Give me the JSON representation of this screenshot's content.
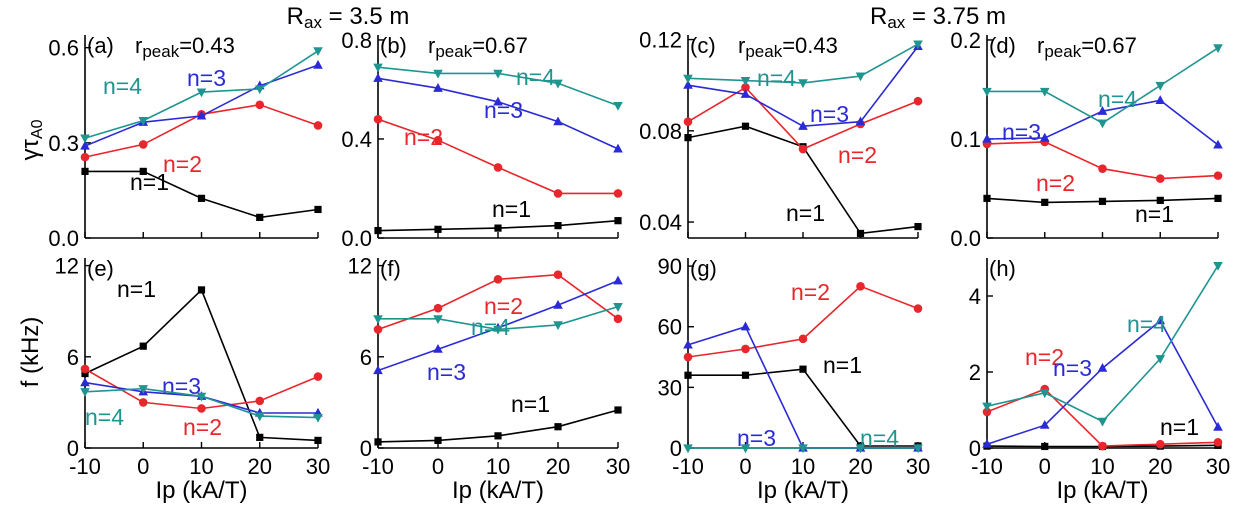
{
  "colors": {
    "n1": "#000000",
    "n2": "#e8262b",
    "n3": "#2b2bd6",
    "n4": "#1f9590"
  },
  "group_titles": [
    {
      "main": "R",
      "sub": "ax",
      "rest": " = 3.5 m"
    },
    {
      "main": "R",
      "sub": "ax",
      "rest": " = 3.75 m"
    }
  ],
  "ylabels": {
    "top": "γτ",
    "top_sub": "A0",
    "bottom": "f (kHz)"
  },
  "xlabel": "Ip (kA/T)",
  "chart_data": [
    {
      "id": "a",
      "label": "(a)",
      "rpeak_prefix": "r",
      "rpeak_sub": "peak",
      "rpeak_value": "=0.43",
      "type": "line",
      "x": [
        -10,
        0,
        10,
        20,
        30
      ],
      "xlim": [
        -10,
        30
      ],
      "xticks": [
        "-10",
        "0",
        "10",
        "20",
        "30"
      ],
      "ylim": [
        0,
        0.64
      ],
      "yticks": [
        0,
        0.3,
        0.6
      ],
      "ytick_labels": [
        "0.0",
        "0.3",
        "0.6"
      ],
      "series": [
        {
          "name": "n=1",
          "color": "n1",
          "marker": "square",
          "values": [
            0.21,
            0.21,
            0.125,
            0.065,
            0.09
          ]
        },
        {
          "name": "n=2",
          "color": "n2",
          "marker": "circle",
          "values": [
            0.255,
            0.295,
            0.39,
            0.42,
            0.355
          ]
        },
        {
          "name": "n=3",
          "color": "n3",
          "marker": "triangle-up",
          "values": [
            0.29,
            0.365,
            0.385,
            0.48,
            0.545
          ]
        },
        {
          "name": "n=4",
          "color": "n4",
          "marker": "triangle-down",
          "values": [
            0.315,
            0.37,
            0.46,
            0.47,
            0.59
          ]
        }
      ]
    },
    {
      "id": "b",
      "label": "(b)",
      "rpeak_prefix": "r",
      "rpeak_sub": "peak",
      "rpeak_value": "=0.67",
      "type": "line",
      "x": [
        -10,
        0,
        10,
        20,
        30
      ],
      "xlim": [
        -10,
        30
      ],
      "xticks": [
        "-10",
        "0",
        "10",
        "20",
        "30"
      ],
      "ylim": [
        0,
        0.82
      ],
      "yticks": [
        0,
        0.4,
        0.8
      ],
      "ytick_labels": [
        "0.0",
        "0.4",
        "0.8"
      ],
      "series": [
        {
          "name": "n=1",
          "color": "n1",
          "marker": "square",
          "values": [
            0.03,
            0.035,
            0.04,
            0.05,
            0.07
          ]
        },
        {
          "name": "n=2",
          "color": "n2",
          "marker": "circle",
          "values": [
            0.48,
            0.395,
            0.285,
            0.18,
            0.18
          ]
        },
        {
          "name": "n=3",
          "color": "n3",
          "marker": "triangle-up",
          "values": [
            0.645,
            0.605,
            0.55,
            0.47,
            0.36
          ]
        },
        {
          "name": "n=4",
          "color": "n4",
          "marker": "triangle-down",
          "values": [
            0.69,
            0.665,
            0.665,
            0.625,
            0.535
          ]
        }
      ]
    },
    {
      "id": "c",
      "label": "(c)",
      "rpeak_prefix": "r",
      "rpeak_sub": "peak",
      "rpeak_value": "=0.43",
      "type": "line",
      "x": [
        -10,
        0,
        10,
        20,
        30
      ],
      "xlim": [
        -10,
        30
      ],
      "xticks": [
        "-10",
        "0",
        "10",
        "20",
        "30"
      ],
      "ylim": [
        0.033,
        0.122
      ],
      "yticks": [
        0.04,
        0.08,
        0.12
      ],
      "ytick_labels": [
        "0.04",
        "0.08",
        "0.12"
      ],
      "series": [
        {
          "name": "n=1",
          "color": "n1",
          "marker": "square",
          "values": [
            0.077,
            0.082,
            0.073,
            0.035,
            0.038
          ]
        },
        {
          "name": "n=2",
          "color": "n2",
          "marker": "circle",
          "values": [
            0.084,
            0.099,
            0.072,
            0.083,
            0.093
          ]
        },
        {
          "name": "n=3",
          "color": "n3",
          "marker": "triangle-up",
          "values": [
            0.1,
            0.096,
            0.082,
            0.084,
            0.117
          ]
        },
        {
          "name": "n=4",
          "color": "n4",
          "marker": "triangle-down",
          "values": [
            0.103,
            0.102,
            0.101,
            0.104,
            0.118
          ]
        }
      ]
    },
    {
      "id": "d",
      "label": "(d)",
      "rpeak_prefix": "r",
      "rpeak_sub": "peak",
      "rpeak_value": "=0.67",
      "type": "line",
      "x": [
        -10,
        0,
        10,
        20,
        30
      ],
      "xlim": [
        -10,
        30
      ],
      "xticks": [
        "-10",
        "0",
        "10",
        "20",
        "30"
      ],
      "ylim": [
        0,
        0.205
      ],
      "yticks": [
        0,
        0.1,
        0.2
      ],
      "ytick_labels": [
        "0.0",
        "0.1",
        "0.2"
      ],
      "series": [
        {
          "name": "n=1",
          "color": "n1",
          "marker": "square",
          "values": [
            0.04,
            0.036,
            0.037,
            0.038,
            0.04
          ]
        },
        {
          "name": "n=2",
          "color": "n2",
          "marker": "circle",
          "values": [
            0.095,
            0.097,
            0.07,
            0.06,
            0.063
          ]
        },
        {
          "name": "n=3",
          "color": "n3",
          "marker": "triangle-up",
          "values": [
            0.1,
            0.101,
            0.128,
            0.139,
            0.094
          ]
        },
        {
          "name": "n=4",
          "color": "n4",
          "marker": "triangle-down",
          "values": [
            0.148,
            0.148,
            0.116,
            0.154,
            0.192
          ]
        }
      ]
    },
    {
      "id": "e",
      "label": "(e)",
      "type": "line",
      "x": [
        -10,
        0,
        10,
        20,
        30
      ],
      "xlim": [
        -10,
        30
      ],
      "xticks": [
        "-10",
        "0",
        "10",
        "20",
        "30"
      ],
      "ylim": [
        0,
        12.5
      ],
      "yticks": [
        0,
        6,
        12
      ],
      "ytick_labels": [
        "0",
        "6",
        "12"
      ],
      "series": [
        {
          "name": "n=1",
          "color": "n1",
          "marker": "square",
          "values": [
            4.9,
            6.7,
            10.4,
            0.7,
            0.5
          ]
        },
        {
          "name": "n=2",
          "color": "n2",
          "marker": "circle",
          "values": [
            5.2,
            3.0,
            2.6,
            3.1,
            4.7
          ]
        },
        {
          "name": "n=3",
          "color": "n3",
          "marker": "triangle-up",
          "values": [
            4.3,
            3.7,
            3.4,
            2.3,
            2.3
          ]
        },
        {
          "name": "n=4",
          "color": "n4",
          "marker": "triangle-down",
          "values": [
            3.7,
            3.9,
            3.4,
            2.1,
            2.0
          ]
        }
      ]
    },
    {
      "id": "f",
      "label": "(f)",
      "type": "line",
      "x": [
        -10,
        0,
        10,
        20,
        30
      ],
      "xlim": [
        -10,
        30
      ],
      "xticks": [
        "-10",
        "0",
        "10",
        "20",
        "30"
      ],
      "ylim": [
        0,
        12.5
      ],
      "yticks": [
        0,
        6,
        12
      ],
      "ytick_labels": [
        "0",
        "6",
        "12"
      ],
      "series": [
        {
          "name": "n=1",
          "color": "n1",
          "marker": "square",
          "values": [
            0.4,
            0.5,
            0.8,
            1.4,
            2.5
          ]
        },
        {
          "name": "n=2",
          "color": "n2",
          "marker": "circle",
          "values": [
            7.8,
            9.2,
            11.1,
            11.4,
            8.5
          ]
        },
        {
          "name": "n=3",
          "color": "n3",
          "marker": "triangle-up",
          "values": [
            5.1,
            6.5,
            7.9,
            9.4,
            11.0
          ]
        },
        {
          "name": "n=4",
          "color": "n4",
          "marker": "triangle-down",
          "values": [
            8.5,
            8.5,
            7.8,
            8.1,
            9.3
          ]
        }
      ]
    },
    {
      "id": "g",
      "label": "(g)",
      "type": "line",
      "x": [
        -10,
        0,
        10,
        20,
        30
      ],
      "xlim": [
        -10,
        30
      ],
      "xticks": [
        "-10",
        "0",
        "10",
        "20",
        "30"
      ],
      "ylim": [
        0,
        94
      ],
      "yticks": [
        0,
        30,
        60,
        90
      ],
      "ytick_labels": [
        "0",
        "30",
        "60",
        "90"
      ],
      "series": [
        {
          "name": "n=1",
          "color": "n1",
          "marker": "square",
          "values": [
            36,
            36,
            39,
            1,
            1
          ]
        },
        {
          "name": "n=2",
          "color": "n2",
          "marker": "circle",
          "values": [
            45,
            49,
            54,
            80,
            69
          ]
        },
        {
          "name": "n=3",
          "color": "n3",
          "marker": "triangle-up",
          "values": [
            51,
            60,
            0,
            0,
            0
          ]
        },
        {
          "name": "n=4",
          "color": "n4",
          "marker": "triangle-down",
          "values": [
            0,
            0,
            0,
            0,
            0
          ]
        }
      ]
    },
    {
      "id": "h",
      "label": "(h)",
      "type": "line",
      "x": [
        -10,
        0,
        10,
        20,
        30
      ],
      "xlim": [
        -10,
        30
      ],
      "xticks": [
        "-10",
        "0",
        "10",
        "20",
        "30"
      ],
      "ylim": [
        0,
        5.0
      ],
      "yticks": [
        0,
        2,
        4
      ],
      "ytick_labels": [
        "0",
        "2",
        "4"
      ],
      "series": [
        {
          "name": "n=1",
          "color": "n1",
          "marker": "square",
          "values": [
            0.05,
            0.04,
            0.04,
            0.05,
            0.07
          ]
        },
        {
          "name": "n=2",
          "color": "n2",
          "marker": "circle",
          "values": [
            0.95,
            1.55,
            0.05,
            0.1,
            0.15
          ]
        },
        {
          "name": "n=3",
          "color": "n3",
          "marker": "triangle-up",
          "values": [
            0.1,
            0.6,
            2.1,
            3.35,
            0.55
          ]
        },
        {
          "name": "n=4",
          "color": "n4",
          "marker": "triangle-down",
          "values": [
            1.1,
            1.45,
            0.7,
            2.35,
            4.8
          ]
        }
      ]
    }
  ]
}
